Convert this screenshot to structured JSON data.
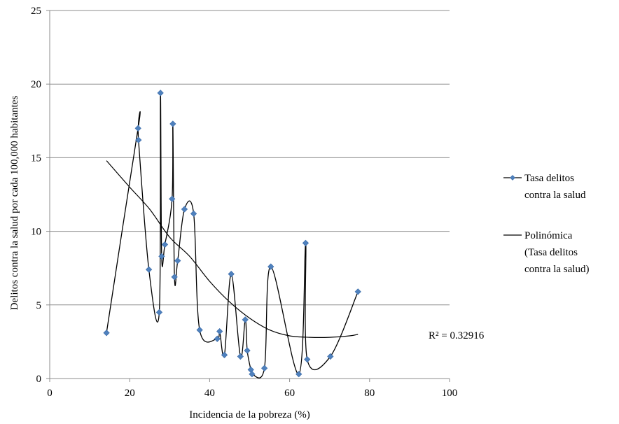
{
  "chart_data": {
    "type": "scatter",
    "title": "",
    "xlabel": "Incidencia de la pobreza (%)",
    "ylabel": "Delitos contra  la salud por cada 100,000 habitantes",
    "xlim": [
      0,
      100
    ],
    "ylim": [
      0,
      25
    ],
    "x_ticks": [
      "0",
      "20",
      "40",
      "60",
      "80",
      "100"
    ],
    "y_ticks": [
      "0",
      "5",
      "10",
      "15",
      "20",
      "25"
    ],
    "grid": "horizontal",
    "legend_position": "right",
    "series": [
      {
        "name": "Tasa delitos contra la salud",
        "line": "smoothed",
        "marker": "diamond",
        "color": "#4f81bd",
        "points": [
          [
            14.2,
            3.1
          ],
          [
            22.1,
            17.0
          ],
          [
            22.2,
            16.2
          ],
          [
            24.8,
            7.4
          ],
          [
            27.4,
            4.5
          ],
          [
            27.7,
            19.4
          ],
          [
            28.0,
            8.3
          ],
          [
            28.8,
            9.1
          ],
          [
            30.6,
            12.2
          ],
          [
            30.8,
            17.3
          ],
          [
            31.2,
            6.9
          ],
          [
            32.0,
            8.0
          ],
          [
            33.7,
            11.5
          ],
          [
            36.0,
            11.2
          ],
          [
            37.5,
            3.3
          ],
          [
            41.9,
            2.7
          ],
          [
            42.5,
            3.2
          ],
          [
            43.7,
            1.6
          ],
          [
            45.4,
            7.1
          ],
          [
            47.7,
            1.5
          ],
          [
            48.9,
            4.0
          ],
          [
            49.4,
            1.9
          ],
          [
            50.3,
            0.6
          ],
          [
            50.6,
            0.3
          ],
          [
            53.7,
            0.7
          ],
          [
            55.3,
            7.6
          ],
          [
            62.3,
            0.3
          ],
          [
            64.0,
            9.2
          ],
          [
            64.4,
            1.3
          ],
          [
            70.2,
            1.5
          ],
          [
            77.1,
            5.9
          ]
        ]
      },
      {
        "name": "Polinómica (Tasa delitos contra la salud)",
        "type": "trendline",
        "line_color": "#000000",
        "x_range": [
          14.2,
          77.1
        ],
        "points": [
          [
            14.2,
            14.8
          ],
          [
            20,
            13.0
          ],
          [
            25,
            11.5
          ],
          [
            30,
            9.6
          ],
          [
            35,
            8.3
          ],
          [
            40,
            6.6
          ],
          [
            45,
            5.2
          ],
          [
            50,
            4.1
          ],
          [
            55,
            3.3
          ],
          [
            60,
            2.9
          ],
          [
            65,
            2.8
          ],
          [
            70,
            2.8
          ],
          [
            75,
            2.9
          ],
          [
            77.1,
            3.0
          ]
        ]
      }
    ],
    "annotation": "R² = 0.32916"
  }
}
